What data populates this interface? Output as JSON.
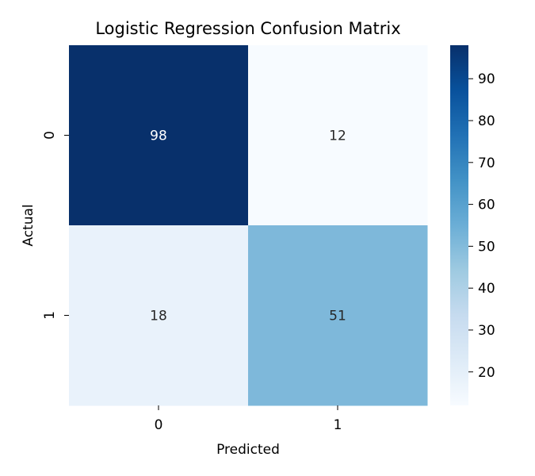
{
  "chart_data": {
    "type": "heatmap",
    "title": "Logistic Regression Confusion Matrix",
    "xlabel": "Predicted",
    "ylabel": "Actual",
    "x_categories": [
      "0",
      "1"
    ],
    "y_categories": [
      "0",
      "1"
    ],
    "values": [
      [
        98,
        12
      ],
      [
        18,
        51
      ]
    ],
    "colormap": "Blues",
    "vmin": 12,
    "vmax": 98,
    "colorbar_ticks": [
      20,
      30,
      40,
      50,
      60,
      70,
      80,
      90
    ],
    "colorbar_tick_labels": [
      "20",
      "30",
      "40",
      "50",
      "60",
      "70",
      "80",
      "90"
    ],
    "grid": false
  }
}
